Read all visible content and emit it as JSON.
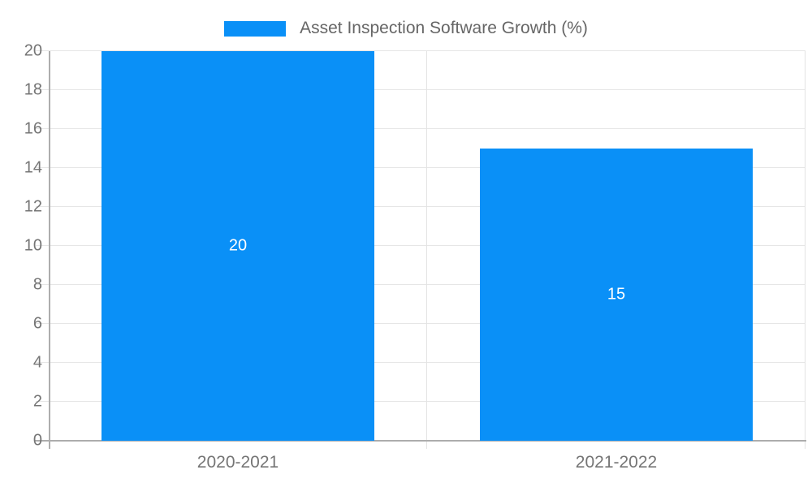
{
  "legend": {
    "label": "Asset Inspection Software Growth (%)"
  },
  "colors": {
    "bar": "#0a90f7",
    "grid": "#e6e6e6",
    "separator": "#e3e3e3",
    "axis": "#adadad",
    "axis_label": "#757575",
    "legend_text": "#666666",
    "value_label": "#ffffff",
    "background": "#ffffff"
  },
  "chart_data": {
    "type": "bar",
    "categories": [
      "2020-2021",
      "2021-2022"
    ],
    "series": [
      {
        "name": "Asset Inspection Software Growth (%)",
        "values": [
          20,
          15
        ],
        "color": "#0a90f7"
      }
    ],
    "value_labels": [
      "20",
      "15"
    ],
    "title": "",
    "xlabel": "",
    "ylabel": "",
    "ylim": [
      0,
      20
    ],
    "ytick_step": 2,
    "yticks": [
      0,
      2,
      4,
      6,
      8,
      10,
      12,
      14,
      16,
      18,
      20
    ],
    "grid": true,
    "legend_position": "top-center",
    "value_label_position": "center-of-bar"
  }
}
